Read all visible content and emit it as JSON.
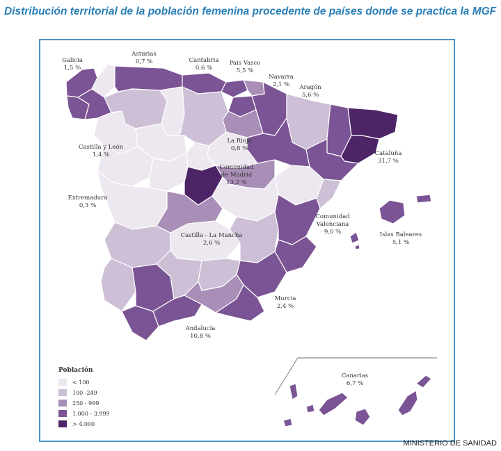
{
  "title": "Distribución territorial de la población femenina procedente de países donde se practica la MGF",
  "source": "MINISTERIO DE SANIDAD",
  "colors": {
    "c1": "#ede7ef",
    "c2": "#cdbfd5",
    "c3": "#a98fb8",
    "c4": "#7a5494",
    "c5": "#4d2566",
    "frame": "#4a94c8",
    "title": "#2a7fb8"
  },
  "legend": {
    "title": "Población",
    "items": [
      {
        "label": "< 100",
        "color": "#ede7ef"
      },
      {
        "label": "100 -249",
        "color": "#cdbfd5"
      },
      {
        "label": "250 - 999",
        "color": "#a98fb8"
      },
      {
        "label": "1.000 - 3.999",
        "color": "#7a5494"
      },
      {
        "label": "> 4.000",
        "color": "#4d2566"
      }
    ]
  },
  "regions": {
    "galicia": {
      "name": "Galicia",
      "value": "1,5 %"
    },
    "asturias": {
      "name": "Asturias",
      "value": "0,7 %"
    },
    "cantabria": {
      "name": "Cantabria",
      "value": "0,6 %"
    },
    "pais_vasco": {
      "name": "País Vasco",
      "value": "5,5 %"
    },
    "navarra": {
      "name": "Navarra",
      "value": "2,1 %"
    },
    "aragon": {
      "name": "Aragón",
      "value": "5,6 %"
    },
    "castilla_leon": {
      "name": "Castilla y León",
      "value": "1,4 %"
    },
    "la_rioja": {
      "name": "La Rioja",
      "value": "0,8 %"
    },
    "madrid": {
      "name1": "Comunidad",
      "name2": "de Madrid",
      "value": "13,2 %"
    },
    "cataluna": {
      "name": "Cataluña",
      "value": "31,7 %"
    },
    "extremadura": {
      "name": "Extremadura",
      "value": "0,3 %"
    },
    "valenciana": {
      "name1": "Comunidad",
      "name2": "Valenciana",
      "value": "9,0 %"
    },
    "baleares": {
      "name": "Islas Baleares",
      "value": "5,1 %"
    },
    "castilla_mancha": {
      "name": "Castilla - La Mancha",
      "value": "2,6 %"
    },
    "murcia": {
      "name": "Murcia",
      "value": "2,4 %"
    },
    "andalucia": {
      "name": "Andalucía",
      "value": "10,8 %"
    },
    "canarias": {
      "name": "Canarias",
      "value": "6,7 %"
    }
  }
}
